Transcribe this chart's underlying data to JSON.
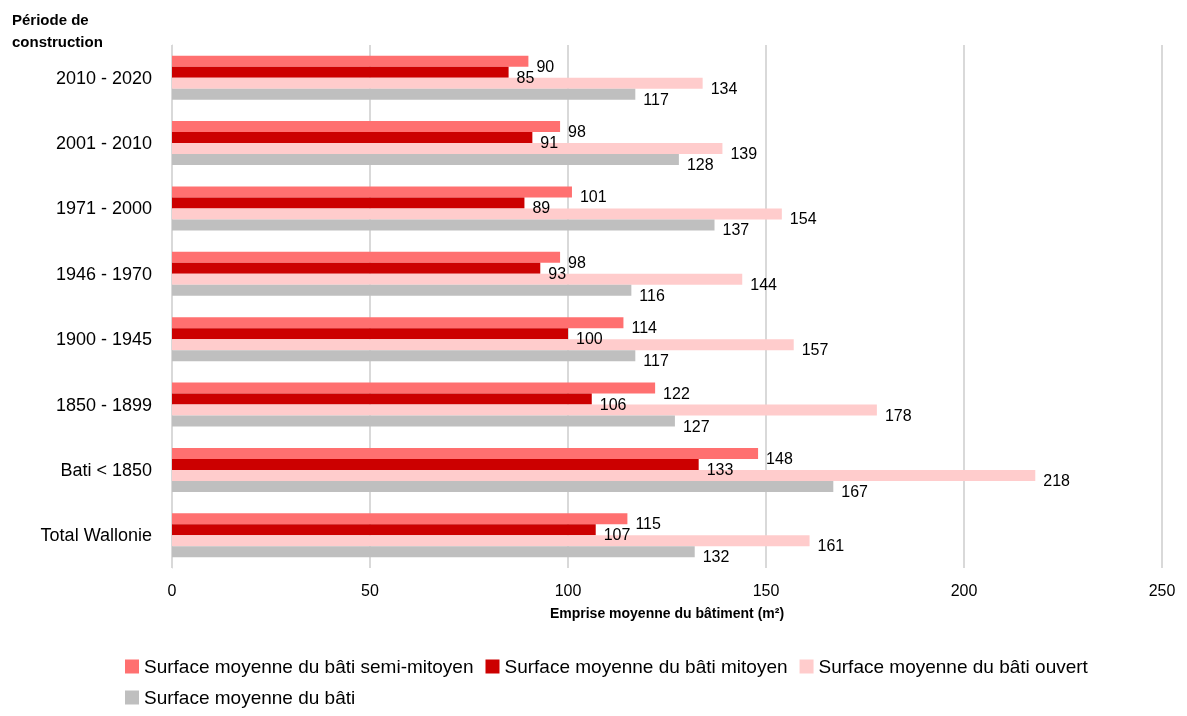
{
  "chart_data": {
    "type": "bar",
    "orientation": "horizontal",
    "ylabel": "Période de\nconstruction",
    "xlabel": "Emprise moyenne du bâtiment (m²)",
    "categories": [
      "2010 - 2020",
      "2001 - 2010",
      "1971 - 2000",
      "1946 - 1970",
      "1900 - 1945",
      "1850 - 1899",
      "Bati < 1850",
      "Total Wallonie"
    ],
    "series": [
      {
        "name": "Surface moyenne du bâti semi-mitoyen",
        "color": "#ff7070",
        "values": [
          90,
          98,
          101,
          98,
          114,
          122,
          148,
          115
        ]
      },
      {
        "name": "Surface moyenne du bâti mitoyen",
        "color": "#cc0000",
        "values": [
          85,
          91,
          89,
          93,
          100,
          106,
          133,
          107
        ]
      },
      {
        "name": "Surface moyenne du bâti ouvert",
        "color": "#ffcccc",
        "values": [
          134,
          139,
          154,
          144,
          157,
          178,
          218,
          161
        ]
      },
      {
        "name": "Surface moyenne du bâti",
        "color": "#bfbfbf",
        "values": [
          117,
          128,
          137,
          116,
          117,
          127,
          167,
          132
        ]
      }
    ],
    "xlim": [
      0,
      250
    ],
    "xticks": [
      0,
      50,
      100,
      150,
      200,
      250
    ],
    "grid": "x",
    "legend": "bottom",
    "data_labels": true
  }
}
